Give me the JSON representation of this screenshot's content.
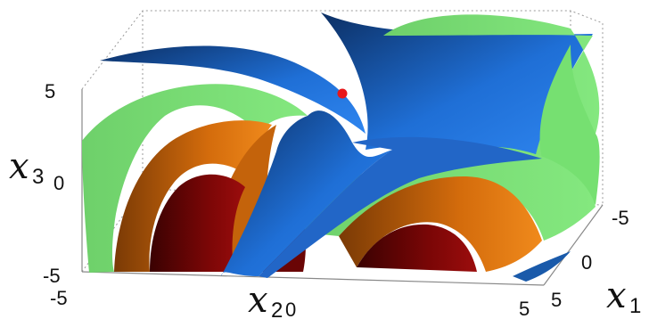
{
  "chart_data": {
    "type": "surface3d",
    "title": "",
    "axes": {
      "x1": {
        "label_var": "x",
        "label_sub": "1",
        "ticks": [
          "-5",
          "0",
          "5"
        ],
        "range": [
          -5,
          5
        ]
      },
      "x2": {
        "label_var": "x",
        "label_sub": "2",
        "ticks": [
          "-5",
          "0",
          "5"
        ],
        "range": [
          -5,
          5
        ]
      },
      "x3": {
        "label_var": "x",
        "label_sub": "3",
        "ticks": [
          "-5",
          "0",
          "5"
        ],
        "range": [
          -5,
          5
        ]
      }
    },
    "surfaces": [
      {
        "color": "#1f6fd6"
      },
      {
        "color": "#74df71"
      },
      {
        "color": "#e07a12"
      },
      {
        "color": "#7a0606"
      }
    ],
    "points": [
      {
        "x1": 0,
        "x2": 0,
        "x3": 0,
        "color": "#e8171a"
      }
    ],
    "box": "dotted"
  }
}
